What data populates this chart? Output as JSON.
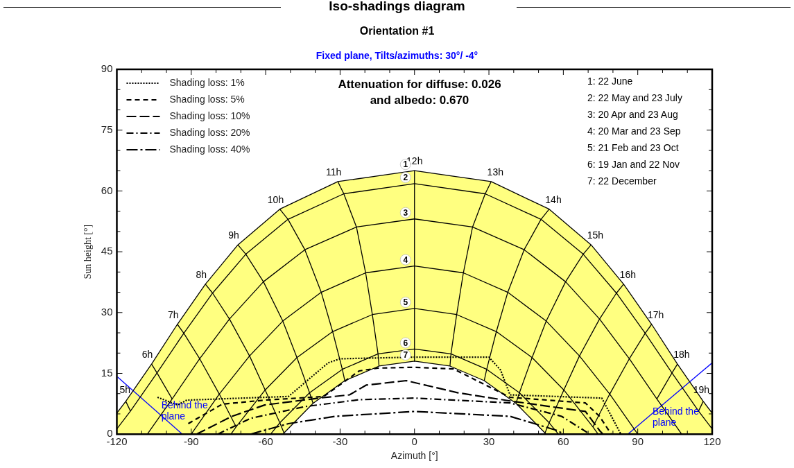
{
  "chart_data": {
    "type": "line",
    "title": "Iso-shadings diagram",
    "subtitle": "Orientation #1",
    "xlabel": "Azimuth [°]",
    "ylabel": "Sun height [°]",
    "xlim": [
      -120,
      120
    ],
    "ylim": [
      0,
      90
    ],
    "xticks": [
      {
        "value": -120,
        "label": "-120"
      },
      {
        "value": -110,
        "label": null
      },
      {
        "value": -100,
        "label": null
      },
      {
        "value": -90,
        "label": "-90"
      },
      {
        "value": -80,
        "label": null
      },
      {
        "value": -70,
        "label": null
      },
      {
        "value": -60,
        "label": "-60"
      },
      {
        "value": -50,
        "label": null
      },
      {
        "value": -40,
        "label": null
      },
      {
        "value": -30,
        "label": "-30"
      },
      {
        "value": -20,
        "label": null
      },
      {
        "value": -10,
        "label": null
      },
      0,
      {
        "value": 10,
        "label": null
      },
      {
        "value": 20,
        "label": null
      },
      30,
      {
        "value": 40,
        "label": null
      },
      {
        "value": 50,
        "label": null
      },
      60,
      {
        "value": 70,
        "label": null
      },
      {
        "value": 80,
        "label": null
      },
      90,
      {
        "value": 100,
        "label": null
      },
      {
        "value": 110,
        "label": null
      },
      120
    ],
    "yticks": [
      0,
      {
        "value": 5,
        "label": null
      },
      {
        "value": 10,
        "label": null
      },
      15,
      {
        "value": 20,
        "label": null
      },
      {
        "value": 25,
        "label": null
      },
      30,
      {
        "value": 35,
        "label": null
      },
      {
        "value": 40,
        "label": null
      },
      45,
      {
        "value": 50,
        "label": null
      },
      {
        "value": 55,
        "label": null
      },
      60,
      {
        "value": 65,
        "label": null
      },
      {
        "value": 70,
        "label": null
      },
      75,
      {
        "value": 80,
        "label": null
      },
      {
        "value": 85,
        "label": null
      },
      90
    ],
    "legend": "top left",
    "series": [
      {
        "type": "area",
        "color": "#ffff80",
        "x": [
          -120,
          -116.4,
          -106,
          -95.6,
          -84.3,
          -71.2,
          -54.3,
          -30.9,
          0,
          30.9,
          54.3,
          71.2,
          84.3,
          95.6,
          106,
          116.4,
          120
        ],
        "values": [
          5.2,
          8.1,
          17.3,
          27.1,
          37.0,
          46.7,
          55.5,
          62.3,
          65.0,
          62.3,
          55.5,
          46.7,
          37.0,
          27.1,
          17.3,
          8.1,
          5.2
        ]
      },
      {
        "color": "#000000",
        "x": [
          -120,
          -114.5,
          -103.8,
          -93,
          -81.4,
          -68,
          -51,
          -28.5,
          0,
          28.5,
          51,
          68,
          81.4,
          93,
          103.8,
          114.5,
          120
        ],
        "values": [
          1.3,
          5.7,
          15.1,
          24.9,
          34.8,
          44.4,
          53,
          59.3,
          61.8,
          59.3,
          53,
          44.4,
          34.8,
          24.9,
          15.1,
          5.7,
          1.3
        ]
      },
      {
        "color": "#000000",
        "x": [
          -107.7,
          -97.7,
          -86.6,
          -74.6,
          -60.9,
          -44.2,
          -23.4,
          0,
          23.4,
          44.2,
          60.9,
          74.6,
          86.6,
          97.7,
          107.7
        ],
        "values": [
          0,
          8.7,
          18.6,
          28.4,
          37.6,
          45.5,
          51.1,
          53.1,
          51.1,
          45.5,
          37.6,
          28.4,
          18.6,
          8.7,
          0
        ]
      },
      {
        "color": "#000000",
        "x": [
          -90,
          -78.7,
          -66.5,
          -53.1,
          -37.6,
          -19.7,
          0,
          19.7,
          37.6,
          53.1,
          66.5,
          78.7,
          90
        ],
        "values": [
          0,
          9.9,
          19.3,
          27.9,
          35,
          39.8,
          41.5,
          39.8,
          35,
          27.9,
          19.3,
          9.9,
          0
        ]
      },
      {
        "color": "#000000",
        "x": [
          -74,
          -71.9,
          -60.2,
          -47.4,
          -33,
          -17,
          0,
          17,
          33,
          47.4,
          60.2,
          71.9,
          74
        ],
        "values": [
          0,
          1.8,
          10.9,
          18.9,
          25.3,
          29.5,
          31,
          29.5,
          25.3,
          18.9,
          10.9,
          1.8,
          0
        ]
      },
      {
        "color": "#000000",
        "x": [
          -58,
          -54.3,
          -42.3,
          -29.1,
          -14.7,
          0,
          14.7,
          29.1,
          42.3,
          54.3,
          58
        ],
        "values": [
          0,
          2.8,
          10.2,
          16,
          19.8,
          21,
          19.8,
          16,
          10.2,
          2.8,
          0
        ]
      },
      {
        "type": "area",
        "color": "#ffffff",
        "x": [
          -53.1,
          -40.9,
          -28.1,
          -14.3,
          0,
          14.3,
          28.1,
          40.9,
          53.1
        ],
        "values": [
          0,
          7.6,
          13.2,
          16.8,
          18,
          16.8,
          13.2,
          7.6,
          0
        ]
      },
      {
        "name": "Shading loss: 1%",
        "color": "#000000",
        "line_style": "dotted",
        "x": [
          -103.6,
          -95.5,
          -91.8,
          -50.8,
          -34.8,
          -30,
          0,
          30,
          34.7,
          38.5,
          75.5,
          83.2
        ],
        "values": [
          9.1,
          7.2,
          8.4,
          9.3,
          17.6,
          18.6,
          19,
          19,
          15.8,
          9.7,
          8.9,
          0
        ]
      },
      {
        "name": "Shading loss: 5%",
        "color": "#000000",
        "line_style": "dashed",
        "x": [
          -91.2,
          -77.5,
          -60.4,
          -36.6,
          -22.3,
          -14.8,
          0,
          15.7,
          27.1,
          38.5,
          68.9,
          74.6,
          79.3
        ],
        "values": [
          2.6,
          7.4,
          8.4,
          9.3,
          15.6,
          16.3,
          16.5,
          16.1,
          12.6,
          9.1,
          7.7,
          4.4,
          0
        ]
      },
      {
        "name": "Shading loss: 10%",
        "color": "#000000",
        "line_style": "longdash",
        "x": [
          -87.9,
          -73.6,
          -60.4,
          -38.5,
          -26.2,
          -19.5,
          -3.3,
          17.6,
          38.5,
          68.9,
          74.6,
          76
        ],
        "values": [
          0,
          4.4,
          7.2,
          8.9,
          9.7,
          12.1,
          13.2,
          10.2,
          8.2,
          5.6,
          0.9,
          0
        ]
      },
      {
        "name": "Shading loss: 20%",
        "color": "#000000",
        "line_style": "dashdot",
        "x": [
          -79.3,
          -66.1,
          -44.2,
          -22.3,
          0,
          38.5,
          59.3,
          70.7
        ],
        "values": [
          0,
          3.9,
          6.8,
          8.5,
          8.9,
          7.7,
          4.4,
          0
        ]
      },
      {
        "name": "Shading loss: 40%",
        "color": "#000000",
        "line_style": "longdashdot",
        "x": [
          -66.1,
          -50.8,
          -31.9,
          0,
          38.5,
          57.5,
          60.3
        ],
        "values": [
          0,
          2.6,
          4.4,
          5.6,
          4.4,
          0.9,
          0
        ]
      },
      {
        "color": "#0000ff",
        "x": [
          -119.7,
          -93.6
        ],
        "values": [
          14.1,
          0
        ]
      },
      {
        "color": "#0000ff",
        "x": [
          86,
          120
        ],
        "values": [
          0,
          17.6
        ]
      },
      {
        "color": "#000000",
        "x": [
          -116.4,
          -114.5
        ],
        "values": [
          8.1,
          5.7
        ]
      },
      {
        "color": "#000000",
        "x": [
          -106,
          -103.8,
          -97.7
        ],
        "values": [
          17.3,
          15.1,
          8.7
        ]
      },
      {
        "color": "#000000",
        "x": [
          -95.6,
          -93,
          -86.6,
          -78.7,
          -71.9
        ],
        "values": [
          27.1,
          24.9,
          18.6,
          9.9,
          1.8
        ]
      },
      {
        "color": "#000000",
        "x": [
          -84.3,
          -81.4,
          -74.6,
          -66.5,
          -60.2,
          -54.3,
          -52.6
        ],
        "values": [
          37,
          34.8,
          28.4,
          19.3,
          10.9,
          2.8,
          0.3
        ]
      },
      {
        "color": "#000000",
        "x": [
          -71.2,
          -68,
          -60.9,
          -53.1,
          -47.4,
          -42.3,
          -40.9
        ],
        "values": [
          46.7,
          44.4,
          37.6,
          27.9,
          18.9,
          10.2,
          7.6
        ]
      },
      {
        "color": "#000000",
        "x": [
          -54.3,
          -51,
          -44.2,
          -37.6,
          -33,
          -29.1,
          -28.1
        ],
        "values": [
          55.5,
          53,
          45.5,
          35,
          25.3,
          16,
          13.2
        ]
      },
      {
        "color": "#000000",
        "x": [
          -30.9,
          -28.5,
          -23.4,
          -19.7,
          -17,
          -14.7,
          -14.3
        ],
        "values": [
          62.3,
          59.3,
          51.1,
          39.8,
          29.5,
          19.8,
          16.8
        ]
      },
      {
        "color": "#000000",
        "x": [
          0,
          0,
          0,
          0,
          0,
          0,
          0
        ],
        "values": [
          65,
          61.8,
          53.1,
          41.5,
          31,
          21,
          18
        ]
      },
      {
        "color": "#000000",
        "x": [
          30.9,
          28.5,
          23.4,
          19.7,
          17,
          14.7,
          14.3
        ],
        "values": [
          62.3,
          59.3,
          51.1,
          39.8,
          29.5,
          19.8,
          16.8
        ]
      },
      {
        "color": "#000000",
        "x": [
          54.3,
          51,
          44.2,
          37.6,
          33,
          29.1,
          28.1
        ],
        "values": [
          55.5,
          53,
          45.5,
          35,
          25.3,
          16,
          13.2
        ]
      },
      {
        "color": "#000000",
        "x": [
          71.2,
          68,
          60.9,
          53.1,
          47.4,
          42.3,
          40.9
        ],
        "values": [
          46.7,
          44.4,
          37.6,
          27.9,
          18.9,
          10.2,
          7.6
        ]
      },
      {
        "color": "#000000",
        "x": [
          84.3,
          81.4,
          74.6,
          66.5,
          60.2,
          54.3,
          52.6
        ],
        "values": [
          37,
          34.8,
          28.4,
          19.3,
          10.9,
          2.8,
          0.3
        ]
      },
      {
        "color": "#000000",
        "x": [
          95.6,
          93,
          86.6,
          78.7,
          71.9
        ],
        "values": [
          27.1,
          24.9,
          18.6,
          9.9,
          1.8
        ]
      },
      {
        "color": "#000000",
        "x": [
          106,
          103.8,
          97.7
        ],
        "values": [
          17.3,
          15.1,
          8.7
        ]
      },
      {
        "color": "#000000",
        "x": [
          116.4,
          114.5
        ],
        "values": [
          8.1,
          5.7
        ]
      }
    ],
    "annotations": [
      "Fixed plane, Tilts/azimuths: 30°/ -4°",
      "Attenuation for diffuse: 0.026",
      "and albedo: 0.670",
      "1: 22 June",
      "2: 22 May and 23 July",
      "3: 20 Apr and 23 Aug",
      "4: 20 Mar and 23 Sep",
      "5: 21 Feb and 23 Oct",
      "6: 19 Jan and 22 Nov",
      "7: 22 December",
      {
        "text": "5h",
        "x": -116.4,
        "y": 8.1
      },
      {
        "text": "6h",
        "x": -106,
        "y": 17.3
      },
      {
        "text": "7h",
        "x": -95.6,
        "y": 27.1
      },
      {
        "text": "8h",
        "x": -84.3,
        "y": 37
      },
      {
        "text": "9h",
        "x": -71.2,
        "y": 46.7
      },
      {
        "text": "10h",
        "x": -54.3,
        "y": 55.5
      },
      {
        "text": "11h",
        "x": -30.9,
        "y": 62.3
      },
      {
        "text": "12h",
        "x": 0,
        "y": 65
      },
      {
        "text": "13h",
        "x": 30.9,
        "y": 62.3
      },
      {
        "text": "14h",
        "x": 54.3,
        "y": 55.5
      },
      {
        "text": "15h",
        "x": 71.2,
        "y": 46.7
      },
      {
        "text": "16h",
        "x": 84.3,
        "y": 37
      },
      {
        "text": "17h",
        "x": 95.6,
        "y": 27.1
      },
      {
        "text": "18h",
        "x": 106,
        "y": 17.3
      },
      {
        "text": "19h",
        "x": 116.4,
        "y": 8.1
      },
      {
        "text": "1",
        "x": 0,
        "y": 65
      },
      {
        "text": "2",
        "x": 0,
        "y": 61.8
      },
      {
        "text": "3",
        "x": 0,
        "y": 53.1
      },
      {
        "text": "4",
        "x": 0,
        "y": 41.5
      },
      {
        "text": "5",
        "x": 0,
        "y": 31
      },
      {
        "text": "6",
        "x": 0,
        "y": 21
      },
      {
        "text": "7",
        "x": 0,
        "y": 18
      },
      {
        "text": "Behind the plane",
        "x": -104,
        "y": 5.6
      },
      {
        "text": "Behind the plane",
        "x": 94,
        "y": 4.1
      }
    ]
  }
}
